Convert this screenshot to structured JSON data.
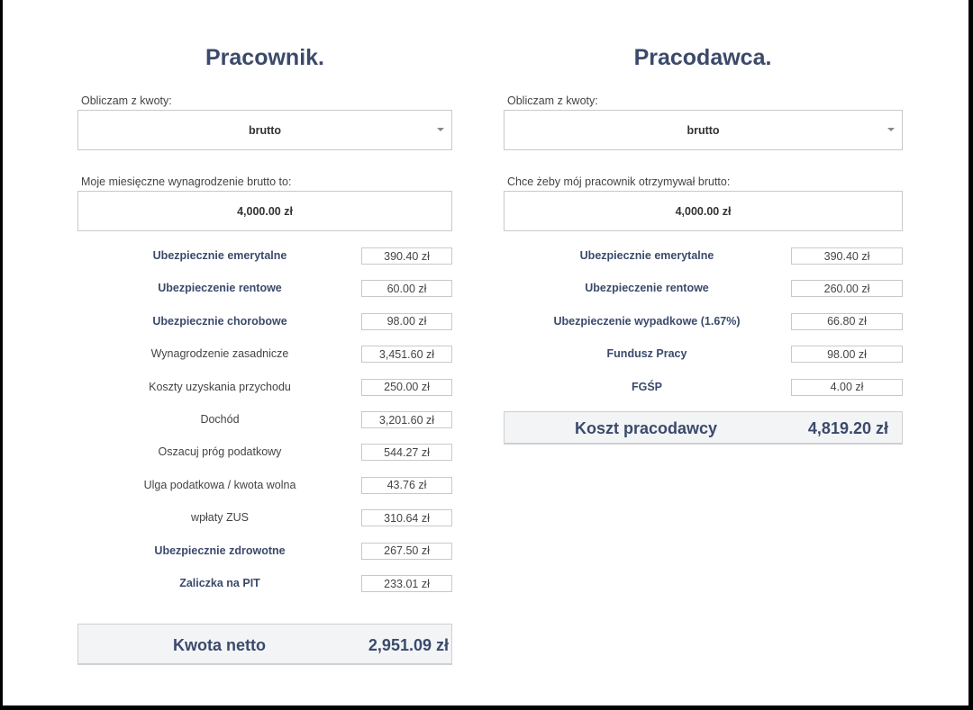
{
  "employee": {
    "title": "Pracownik.",
    "mode_label": "Obliczam z kwoty:",
    "mode_value": "brutto",
    "salary_label": "Moje miesięczne wynagrodzenie brutto to:",
    "salary_value": "4,000.00 zł",
    "rows": [
      {
        "label": "Ubezpiecznie emerytalne",
        "value": "390.40 zł",
        "bold": true
      },
      {
        "label": "Ubezpieczenie rentowe",
        "value": "60.00 zł",
        "bold": true
      },
      {
        "label": "Ubezpiecznie chorobowe",
        "value": "98.00 zł",
        "bold": true
      },
      {
        "label": "Wynagrodzenie zasadnicze",
        "value": "3,451.60 zł",
        "bold": false
      },
      {
        "label": "Koszty uzyskania przychodu",
        "value": "250.00 zł",
        "bold": false
      },
      {
        "label": "Dochód",
        "value": "3,201.60 zł",
        "bold": false
      },
      {
        "label": "Oszacuj próg podatkowy",
        "value": "544.27 zł",
        "bold": false
      },
      {
        "label": "Ulga podatkowa / kwota wolna",
        "value": "43.76 zł",
        "bold": false
      },
      {
        "label": "wpłaty ZUS",
        "value": "310.64 zł",
        "bold": false
      },
      {
        "label": "Ubezpiecznie zdrowotne",
        "value": "267.50 zł",
        "bold": true
      },
      {
        "label": "Zaliczka na PIT",
        "value": "233.01 zł",
        "bold": true
      }
    ],
    "total_label": "Kwota netto",
    "total_value": "2,951.09 zł"
  },
  "employer": {
    "title": "Pracodawca.",
    "mode_label": "Obliczam z kwoty:",
    "mode_value": "brutto",
    "salary_label": "Chce żeby mój pracownik otrzymywał brutto:",
    "salary_value": "4,000.00 zł",
    "rows": [
      {
        "label": "Ubezpiecznie emerytalne",
        "value": "390.40 zł",
        "bold": true
      },
      {
        "label": "Ubezpieczenie rentowe",
        "value": "260.00 zł",
        "bold": true
      },
      {
        "label": "Ubezpieczenie wypadkowe  (1.67%)",
        "value": "66.80 zł",
        "bold": true
      },
      {
        "label": "Fundusz Pracy",
        "value": "98.00 zł",
        "bold": true
      },
      {
        "label": "FGŚP",
        "value": "4.00 zł",
        "bold": true
      }
    ],
    "total_label": "Koszt pracodawcy",
    "total_value": "4,819.20 zł"
  }
}
